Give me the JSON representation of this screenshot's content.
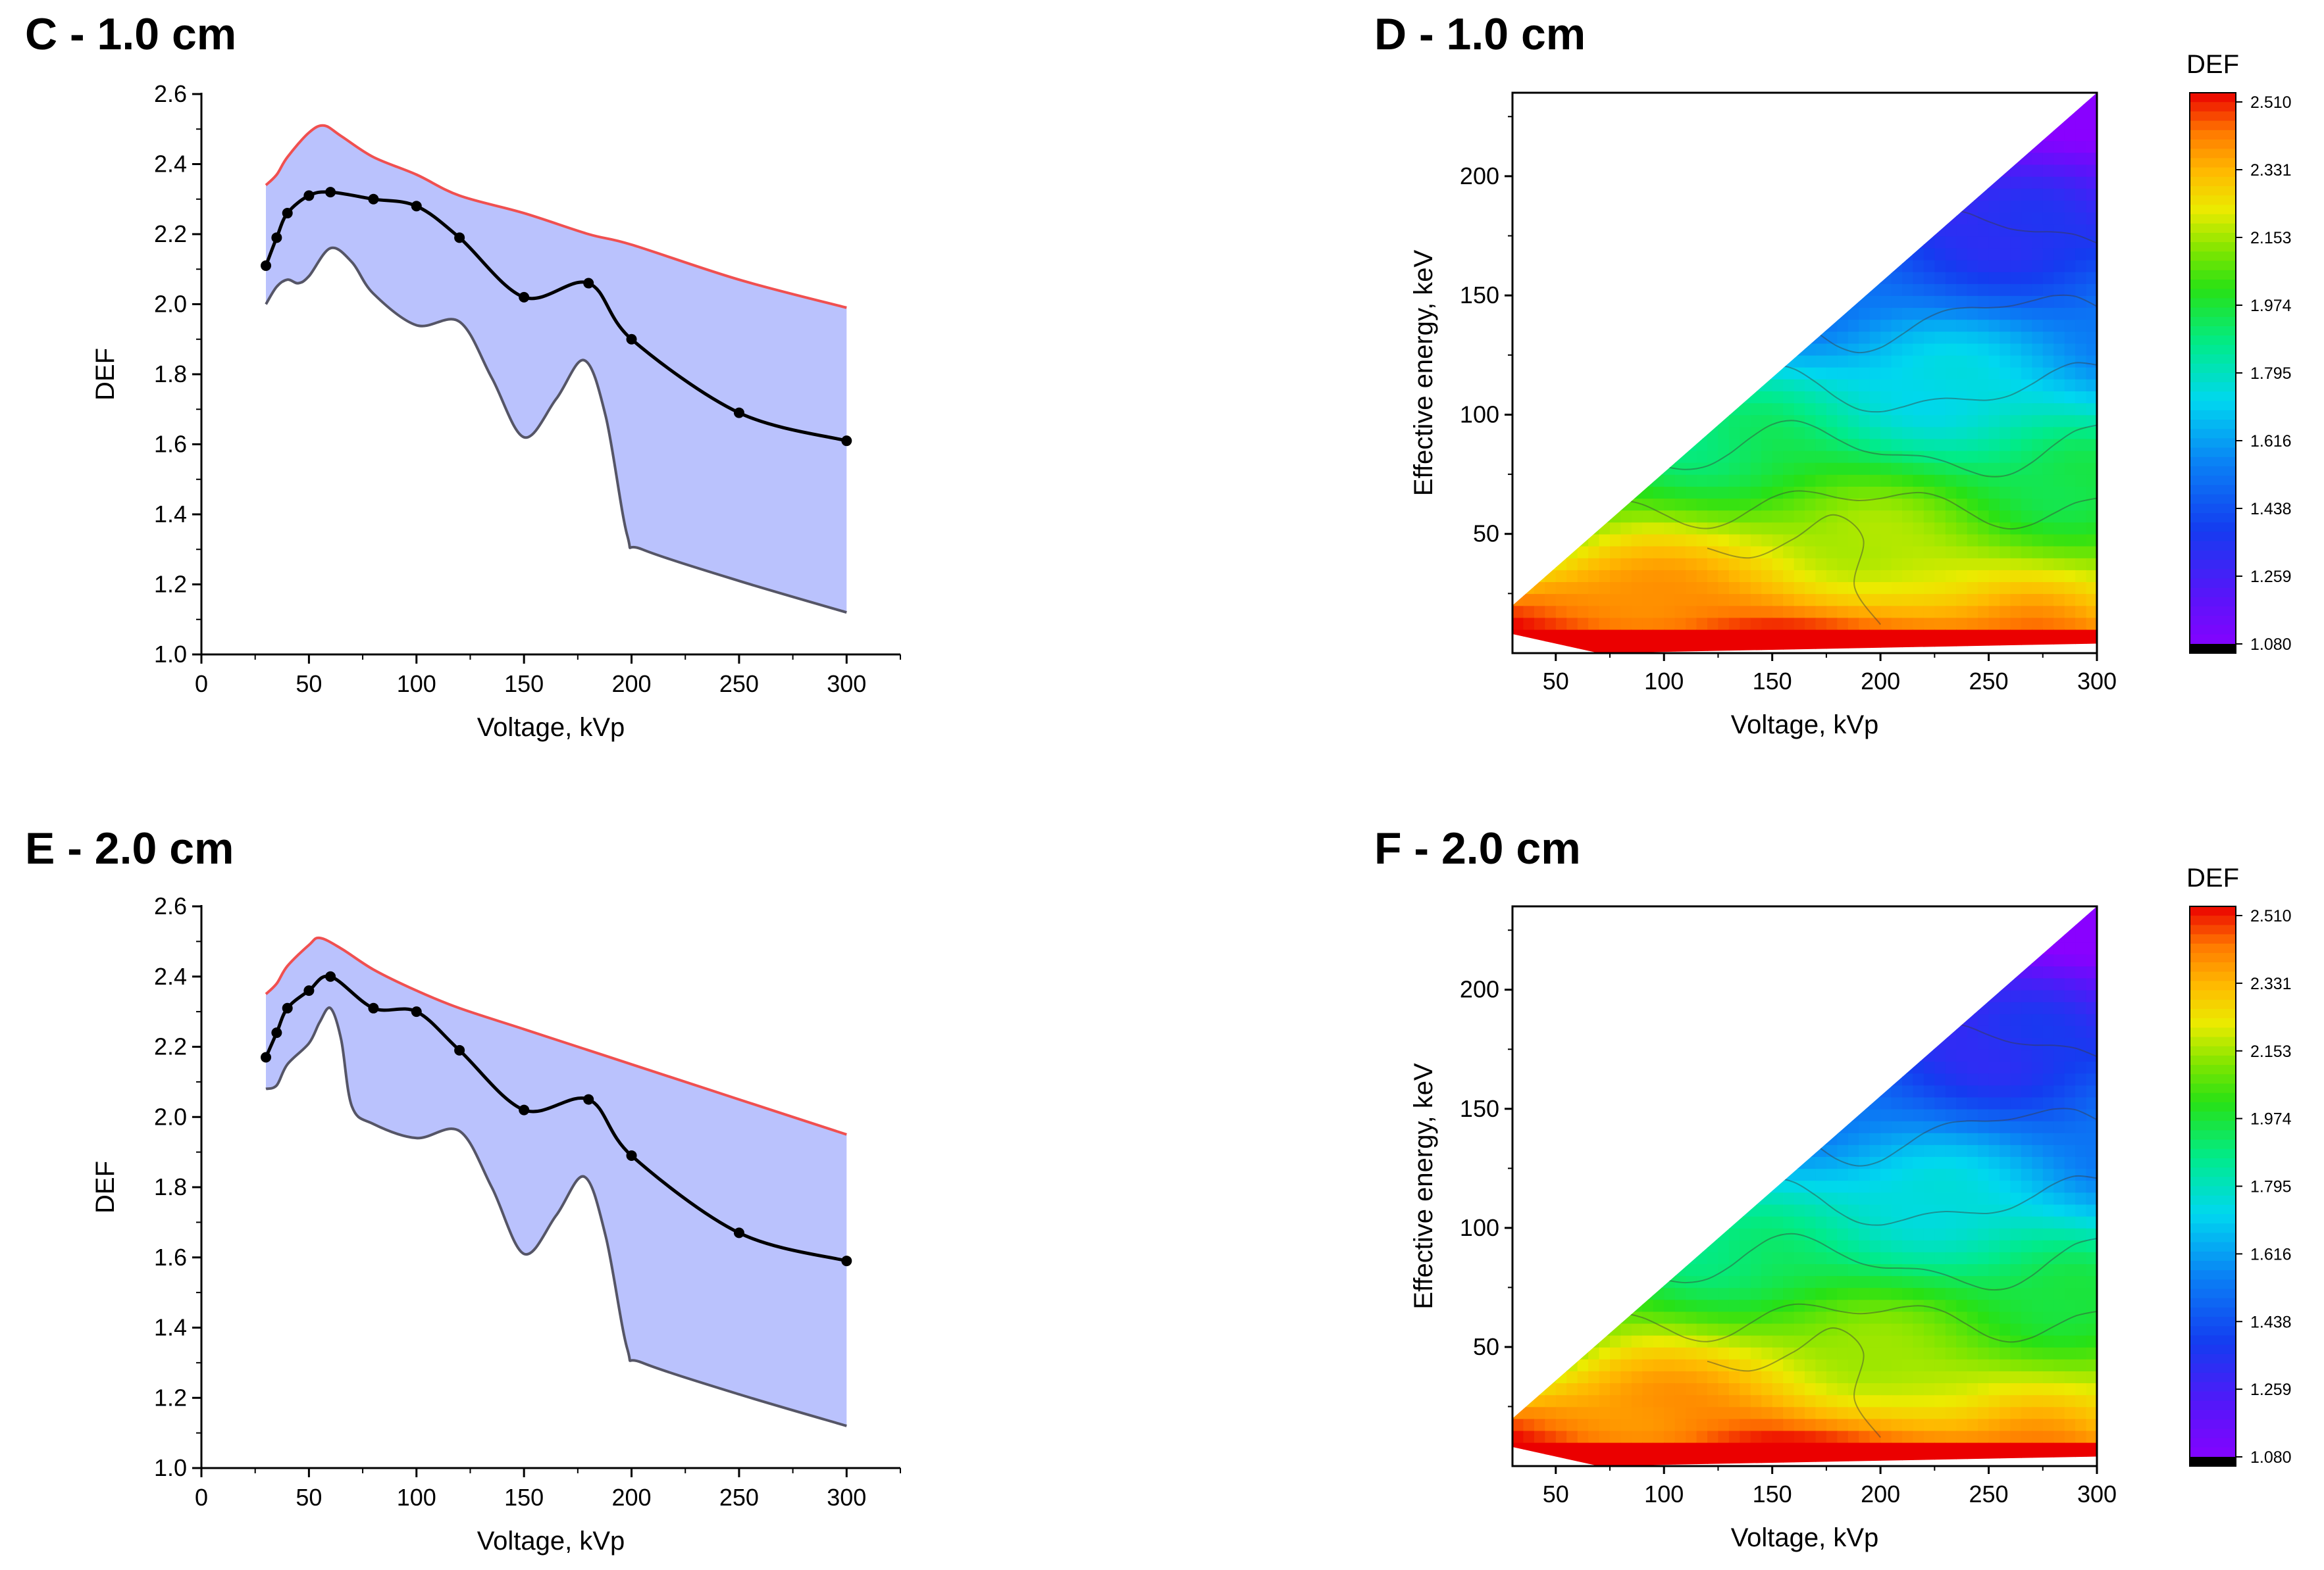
{
  "chart_data": [
    {
      "type": "line",
      "panel": "C",
      "title": "C - 1.0 cm",
      "xlabel": "Voltage, kVp",
      "ylabel": "DEF",
      "xlim": [
        0,
        325
      ],
      "ylim": [
        1.0,
        2.6
      ],
      "xticks": [
        0,
        50,
        100,
        150,
        200,
        250,
        300
      ],
      "yticks": [
        1.0,
        1.2,
        1.4,
        1.6,
        1.8,
        2.0,
        2.2,
        2.4,
        2.6
      ],
      "colors": {
        "band": "#bac2fd",
        "upper": "#f05050",
        "lower": "#555566",
        "mean": "#000000"
      },
      "series": [
        {
          "name": "mean",
          "x": [
            30,
            35,
            40,
            50,
            60,
            80,
            100,
            120,
            150,
            180,
            200,
            250,
            300
          ],
          "y": [
            2.11,
            2.19,
            2.26,
            2.31,
            2.32,
            2.3,
            2.28,
            2.19,
            2.02,
            2.06,
            1.9,
            1.69,
            1.61
          ]
        },
        {
          "name": "max",
          "x": [
            30,
            35,
            40,
            50,
            57,
            65,
            80,
            100,
            120,
            150,
            180,
            200,
            250,
            300
          ],
          "y": [
            2.34,
            2.37,
            2.42,
            2.49,
            2.51,
            2.48,
            2.42,
            2.37,
            2.31,
            2.26,
            2.2,
            2.17,
            2.07,
            1.99
          ]
        },
        {
          "name": "min",
          "x": [
            30,
            35,
            40,
            45,
            50,
            60,
            70,
            80,
            100,
            120,
            135,
            150,
            165,
            178,
            188,
            198,
            205,
            250,
            300
          ],
          "y": [
            2.0,
            2.05,
            2.07,
            2.06,
            2.08,
            2.16,
            2.12,
            2.03,
            1.94,
            1.95,
            1.79,
            1.62,
            1.73,
            1.84,
            1.68,
            1.34,
            1.3,
            1.21,
            1.12
          ]
        }
      ]
    },
    {
      "type": "heatmap",
      "panel": "D",
      "title": "D - 1.0 cm",
      "xlabel": "Voltage, kVp",
      "ylabel": "Effective energy, keV",
      "xlim": [
        30,
        300
      ],
      "ylim": [
        0,
        235
      ],
      "xticks": [
        50,
        100,
        150,
        200,
        250,
        300
      ],
      "yticks": [
        50,
        100,
        150,
        200
      ],
      "colorbar": {
        "title": "DEF",
        "min": 1.08,
        "max": 2.51,
        "ticks": [
          "2.510",
          "2.331",
          "2.153",
          "1.974",
          "1.795",
          "1.616",
          "1.438",
          "1.259",
          "1.080"
        ]
      }
    },
    {
      "type": "line",
      "panel": "E",
      "title": "E - 2.0 cm",
      "xlabel": "Voltage, kVp",
      "ylabel": "DEF",
      "xlim": [
        0,
        325
      ],
      "ylim": [
        1.0,
        2.6
      ],
      "xticks": [
        0,
        50,
        100,
        150,
        200,
        250,
        300
      ],
      "yticks": [
        1.0,
        1.2,
        1.4,
        1.6,
        1.8,
        2.0,
        2.2,
        2.4,
        2.6
      ],
      "colors": {
        "band": "#bac2fd",
        "upper": "#f05050",
        "lower": "#555566",
        "mean": "#000000"
      },
      "series": [
        {
          "name": "mean",
          "x": [
            30,
            35,
            40,
            50,
            60,
            80,
            100,
            120,
            150,
            180,
            200,
            250,
            300
          ],
          "y": [
            2.17,
            2.24,
            2.31,
            2.36,
            2.4,
            2.31,
            2.3,
            2.19,
            2.02,
            2.05,
            1.89,
            1.67,
            1.59
          ]
        },
        {
          "name": "max",
          "x": [
            30,
            35,
            40,
            50,
            55,
            65,
            80,
            100,
            120,
            150,
            180,
            200,
            250,
            300
          ],
          "y": [
            2.35,
            2.38,
            2.43,
            2.49,
            2.51,
            2.48,
            2.42,
            2.36,
            2.31,
            2.25,
            2.19,
            2.15,
            2.05,
            1.95
          ]
        },
        {
          "name": "min",
          "x": [
            30,
            35,
            40,
            50,
            55,
            60,
            65,
            70,
            80,
            100,
            120,
            135,
            150,
            165,
            178,
            188,
            198,
            205,
            250,
            300
          ],
          "y": [
            2.08,
            2.09,
            2.15,
            2.21,
            2.27,
            2.31,
            2.22,
            2.03,
            1.98,
            1.94,
            1.96,
            1.8,
            1.61,
            1.72,
            1.83,
            1.66,
            1.34,
            1.3,
            1.21,
            1.12
          ]
        }
      ]
    },
    {
      "type": "heatmap",
      "panel": "F",
      "title": "F - 2.0 cm",
      "xlabel": "Voltage, kVp",
      "ylabel": "Effective energy, keV",
      "xlim": [
        30,
        300
      ],
      "ylim": [
        0,
        235
      ],
      "xticks": [
        50,
        100,
        150,
        200,
        250,
        300
      ],
      "yticks": [
        50,
        100,
        150,
        200
      ],
      "colorbar": {
        "title": "DEF",
        "min": 1.08,
        "max": 2.51,
        "ticks": [
          "2.510",
          "2.331",
          "2.153",
          "1.974",
          "1.795",
          "1.616",
          "1.438",
          "1.259",
          "1.080"
        ]
      }
    }
  ]
}
